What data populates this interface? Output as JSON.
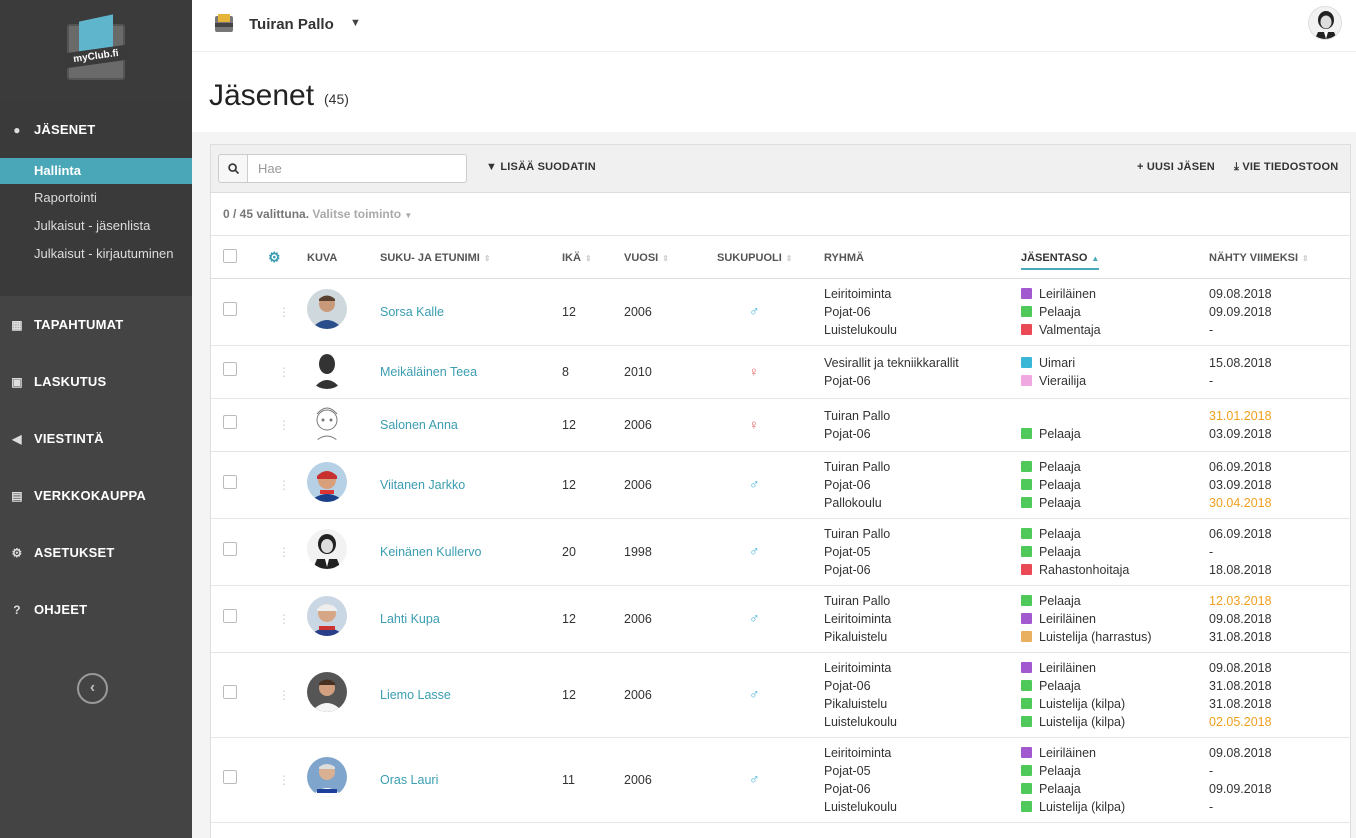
{
  "app": {
    "logo_text": "myClub.fi",
    "club_name": "Tuiran Pallo"
  },
  "sidebar": {
    "sections": [
      {
        "label": "JÄSENET",
        "icon": "user-icon"
      },
      {
        "label": "TAPAHTUMAT",
        "icon": "calendar-icon"
      },
      {
        "label": "LASKUTUS",
        "icon": "money-icon"
      },
      {
        "label": "VIESTINTÄ",
        "icon": "megaphone-icon"
      },
      {
        "label": "VERKKOKAUPPA",
        "icon": "cart-icon"
      },
      {
        "label": "ASETUKSET",
        "icon": "gear-icon"
      },
      {
        "label": "OHJEET",
        "icon": "question-icon"
      }
    ],
    "sub_items": [
      {
        "label": "Hallinta",
        "active": true
      },
      {
        "label": "Raportointi"
      },
      {
        "label": "Julkaisut - jäsenlista"
      },
      {
        "label": "Julkaisut - kirjautuminen"
      }
    ]
  },
  "page": {
    "title": "Jäsenet",
    "count": "(45)"
  },
  "toolbar": {
    "search_placeholder": "Hae",
    "filter_label": "LISÄÄ SUODATIN",
    "new_member_label": "UUSI JÄSEN",
    "export_label": "VIE TIEDOSTOON"
  },
  "selection": {
    "info": "0 / 45 valittuna.",
    "action": "Valitse toiminto"
  },
  "table": {
    "headers": {
      "picture": "KUVA",
      "name": "SUKU- JA ETUNIMI",
      "age": "IKÄ",
      "year": "VUOSI",
      "gender": "SUKUPUOLI",
      "group": "RYHMÄ",
      "level": "JÄSENTASO",
      "last_seen": "NÄHTY VIIMEKSI"
    },
    "rows": [
      {
        "name": "Sorsa Kalle",
        "age": "12",
        "year": "2006",
        "gender": "♂",
        "groups": [
          "Leiritoiminta",
          "Pojat-06",
          "Luistelukoulu"
        ],
        "levels": [
          {
            "label": "Leiriläinen",
            "color": "#a259d0"
          },
          {
            "label": "Pelaaja",
            "color": "#4fc95a"
          },
          {
            "label": "Valmentaja",
            "color": "#ea4a55"
          }
        ],
        "seen": [
          {
            "v": "09.08.2018"
          },
          {
            "v": "09.09.2018"
          },
          {
            "v": "-"
          }
        ]
      },
      {
        "name": "Meikäläinen Teea",
        "age": "8",
        "year": "2010",
        "gender": "♀",
        "groups": [
          "Vesirallit ja tekniikkarallit",
          "Pojat-06"
        ],
        "levels": [
          {
            "label": "Uimari",
            "color": "#3ab6d6"
          },
          {
            "label": "Vierailija",
            "color": "#f0a8e0"
          }
        ],
        "seen": [
          {
            "v": "15.08.2018"
          },
          {
            "v": "-"
          }
        ]
      },
      {
        "name": "Salonen Anna",
        "age": "12",
        "year": "2006",
        "gender": "♀",
        "groups": [
          "Tuiran Pallo",
          "Pojat-06"
        ],
        "levels": [
          {
            "label": "",
            "color": ""
          },
          {
            "label": "Pelaaja",
            "color": "#4fc95a"
          }
        ],
        "seen": [
          {
            "v": "31.01.2018",
            "warn": true
          },
          {
            "v": "03.09.2018"
          }
        ]
      },
      {
        "name": "Viitanen Jarkko",
        "age": "12",
        "year": "2006",
        "gender": "♂",
        "groups": [
          "Tuiran Pallo",
          "Pojat-06",
          "Pallokoulu"
        ],
        "levels": [
          {
            "label": "Pelaaja",
            "color": "#4fc95a"
          },
          {
            "label": "Pelaaja",
            "color": "#4fc95a"
          },
          {
            "label": "Pelaaja",
            "color": "#4fc95a"
          }
        ],
        "seen": [
          {
            "v": "06.09.2018"
          },
          {
            "v": "03.09.2018"
          },
          {
            "v": "30.04.2018",
            "warn": true
          }
        ]
      },
      {
        "name": "Keinänen Kullervo",
        "age": "20",
        "year": "1998",
        "gender": "♂",
        "groups": [
          "Tuiran Pallo",
          "Pojat-05",
          "Pojat-06"
        ],
        "levels": [
          {
            "label": "Pelaaja",
            "color": "#4fc95a"
          },
          {
            "label": "Pelaaja",
            "color": "#4fc95a"
          },
          {
            "label": "Rahastonhoitaja",
            "color": "#ea4a55"
          }
        ],
        "seen": [
          {
            "v": "06.09.2018"
          },
          {
            "v": "-"
          },
          {
            "v": "18.08.2018"
          }
        ]
      },
      {
        "name": "Lahti Kupa",
        "age": "12",
        "year": "2006",
        "gender": "♂",
        "groups": [
          "Tuiran Pallo",
          "Leiritoiminta",
          "Pikaluistelu"
        ],
        "levels": [
          {
            "label": "Pelaaja",
            "color": "#4fc95a"
          },
          {
            "label": "Leiriläinen",
            "color": "#a259d0"
          },
          {
            "label": "Luistelija (harrastus)",
            "color": "#e8b060"
          }
        ],
        "seen": [
          {
            "v": "12.03.2018",
            "warn": true
          },
          {
            "v": "09.08.2018"
          },
          {
            "v": "31.08.2018"
          }
        ]
      },
      {
        "name": "Liemo Lasse",
        "age": "12",
        "year": "2006",
        "gender": "♂",
        "groups": [
          "Leiritoiminta",
          "Pojat-06",
          "Pikaluistelu",
          "Luistelukoulu"
        ],
        "levels": [
          {
            "label": "Leiriläinen",
            "color": "#a259d0"
          },
          {
            "label": "Pelaaja",
            "color": "#4fc95a"
          },
          {
            "label": "Luistelija (kilpa)",
            "color": "#4fc95a"
          },
          {
            "label": "Luistelija (kilpa)",
            "color": "#4fc95a"
          }
        ],
        "seen": [
          {
            "v": "09.08.2018"
          },
          {
            "v": "31.08.2018"
          },
          {
            "v": "31.08.2018"
          },
          {
            "v": "02.05.2018",
            "warn": true
          }
        ]
      },
      {
        "name": "Oras Lauri",
        "age": "11",
        "year": "2006",
        "gender": "♂",
        "groups": [
          "Leiritoiminta",
          "Pojat-05",
          "Pojat-06",
          "Luistelukoulu"
        ],
        "levels": [
          {
            "label": "Leiriläinen",
            "color": "#a259d0"
          },
          {
            "label": "Pelaaja",
            "color": "#4fc95a"
          },
          {
            "label": "Pelaaja",
            "color": "#4fc95a"
          },
          {
            "label": "Luistelija (kilpa)",
            "color": "#4fc95a"
          }
        ],
        "seen": [
          {
            "v": "09.08.2018"
          },
          {
            "v": "-"
          },
          {
            "v": "09.09.2018"
          },
          {
            "v": "-"
          }
        ]
      }
    ]
  }
}
